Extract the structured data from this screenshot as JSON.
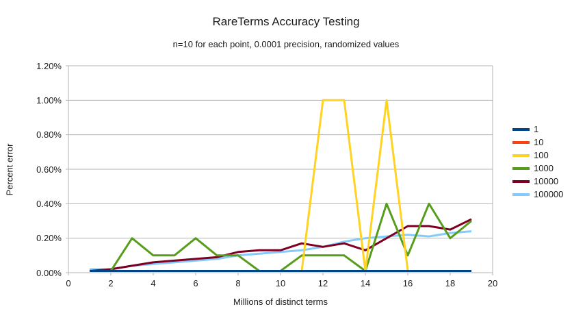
{
  "title": "RareTerms Accuracy Testing",
  "subtitle": "n=10 for each point, 0.0001 precision, randomized values",
  "colors": {
    "background": "#ffffff",
    "grid": "#b3b3b3",
    "text": "#1a1a1a"
  },
  "chart_data": {
    "type": "line",
    "title": "RareTerms Accuracy Testing",
    "subtitle": "n=10 for each point, 0.0001 precision, randomized values",
    "xlabel": "Millions of distinct terms",
    "ylabel": "Percent error",
    "xlim": [
      0,
      20
    ],
    "ylim": [
      0,
      1.2
    ],
    "y_unit": "percent",
    "grid": "horizontal",
    "legend_position": "right",
    "x_tick_labels": [
      "0",
      "2",
      "4",
      "6",
      "8",
      "10",
      "12",
      "14",
      "16",
      "18",
      "20"
    ],
    "x_tick_values": [
      0,
      2,
      4,
      6,
      8,
      10,
      12,
      14,
      16,
      18,
      20
    ],
    "y_tick_labels": [
      "0.00%",
      "0.20%",
      "0.40%",
      "0.60%",
      "0.80%",
      "1.00%",
      "1.20%"
    ],
    "y_tick_values": [
      0,
      0.2,
      0.4,
      0.6,
      0.8,
      1.0,
      1.2
    ],
    "x": [
      1,
      2,
      3,
      4,
      5,
      6,
      7,
      8,
      9,
      10,
      11,
      12,
      13,
      14,
      15,
      16,
      17,
      18,
      19
    ],
    "series": [
      {
        "name": "1",
        "color": "#004586",
        "values": [
          0.01,
          0.01,
          0.01,
          0.01,
          0.01,
          0.01,
          0.01,
          0.01,
          0.01,
          0.01,
          0.01,
          0.01,
          0.01,
          0.01,
          0.01,
          0.01,
          0.01,
          0.01,
          0.01
        ]
      },
      {
        "name": "10",
        "color": "#ff420e",
        "values": [
          0.01,
          0.01,
          0.01,
          0.01,
          0.01,
          0.01,
          0.01,
          0.01,
          0.01,
          0.01,
          0.01,
          0.01,
          0.01,
          0.01,
          0.01,
          0.01,
          0.01,
          0.01,
          0.01
        ]
      },
      {
        "name": "100",
        "color": "#ffd320",
        "values": [
          0.01,
          0.01,
          0.01,
          0.01,
          0.01,
          0.01,
          0.01,
          0.01,
          0.01,
          0.01,
          0.01,
          1.0,
          1.0,
          0.01,
          1.0,
          0.01,
          0.01,
          0.01,
          0.01
        ]
      },
      {
        "name": "1000",
        "color": "#579d1c",
        "values": [
          0.01,
          0.01,
          0.2,
          0.1,
          0.1,
          0.2,
          0.1,
          0.1,
          0.01,
          0.01,
          0.1,
          0.1,
          0.1,
          0.01,
          0.4,
          0.1,
          0.4,
          0.2,
          0.3
        ]
      },
      {
        "name": "10000",
        "color": "#7e0021",
        "values": [
          0.01,
          0.02,
          0.04,
          0.06,
          0.07,
          0.08,
          0.09,
          0.12,
          0.13,
          0.13,
          0.17,
          0.15,
          0.17,
          0.13,
          0.2,
          0.27,
          0.27,
          0.25,
          0.31
        ]
      },
      {
        "name": "100000",
        "color": "#83caff",
        "values": [
          0.02,
          0.02,
          0.04,
          0.05,
          0.06,
          0.07,
          0.08,
          0.1,
          0.11,
          0.12,
          0.13,
          0.15,
          0.18,
          0.2,
          0.21,
          0.22,
          0.21,
          0.23,
          0.24
        ]
      }
    ],
    "draw_order": [
      "100000",
      "10000",
      "1000",
      "100",
      "10",
      "1"
    ]
  }
}
